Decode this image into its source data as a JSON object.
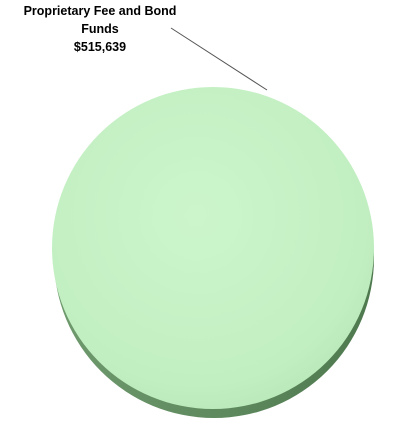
{
  "chart_data": {
    "type": "pie",
    "slices": [
      {
        "label_lines": [
          "Proprietary Fee and Bond",
          "Funds",
          "$515,639"
        ],
        "value": 515639,
        "color": "#c6f2c6"
      }
    ],
    "legend": "none",
    "style": "3d"
  }
}
